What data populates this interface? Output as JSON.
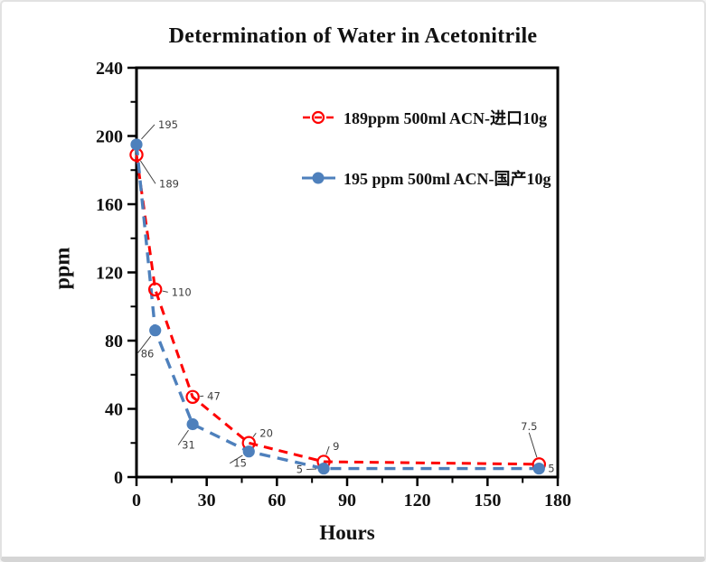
{
  "chart_data": {
    "type": "line",
    "title": "Determination of Water in Acetonitrile",
    "xlabel": "Hours",
    "ylabel": "ppm",
    "xlim": [
      0,
      180
    ],
    "ylim": [
      0,
      240
    ],
    "xticks": [
      0,
      30,
      60,
      90,
      120,
      150,
      180
    ],
    "yticks": [
      0,
      40,
      80,
      120,
      160,
      200,
      240
    ],
    "x_minor_step": 15,
    "y_minor_step": 20,
    "grid": false,
    "legend_position": "inside-top-right",
    "axis_color": "#000000",
    "label_color": "#3d3d3d",
    "series": [
      {
        "name": "189ppm  500ml ACN-进口10g",
        "color": "#fe0000",
        "marker": "open-circle",
        "line_style": "dashed",
        "x": [
          0,
          8,
          24,
          48,
          80,
          172
        ],
        "y": [
          189,
          110,
          47,
          20,
          9,
          7.5
        ],
        "point_labels": [
          "189",
          "110",
          "47",
          "20",
          "9",
          "7.5"
        ],
        "label_offsets": [
          [
            25,
            36,
            "start"
          ],
          [
            18,
            7,
            "start"
          ],
          [
            16,
            3,
            "start"
          ],
          [
            12,
            -7,
            "start"
          ],
          [
            10,
            -13,
            "start"
          ],
          [
            -11,
            -38,
            "middle"
          ]
        ]
      },
      {
        "name": "195 ppm 500ml ACN-国产10g",
        "color": "#4e80bc",
        "marker": "filled-circle",
        "line_style": "dashed",
        "x": [
          0,
          8,
          24,
          48,
          80,
          172
        ],
        "y": [
          195,
          86,
          31,
          15,
          5,
          5
        ],
        "point_labels": [
          "195",
          "86",
          "31",
          "15",
          "5",
          "5"
        ],
        "label_offsets": [
          [
            24,
            -18,
            "start"
          ],
          [
            -16,
            30,
            "start"
          ],
          [
            -12,
            27,
            "start"
          ],
          [
            -17,
            17,
            "start"
          ],
          [
            -23,
            5,
            "end"
          ],
          [
            10,
            4,
            "start"
          ]
        ]
      }
    ]
  }
}
